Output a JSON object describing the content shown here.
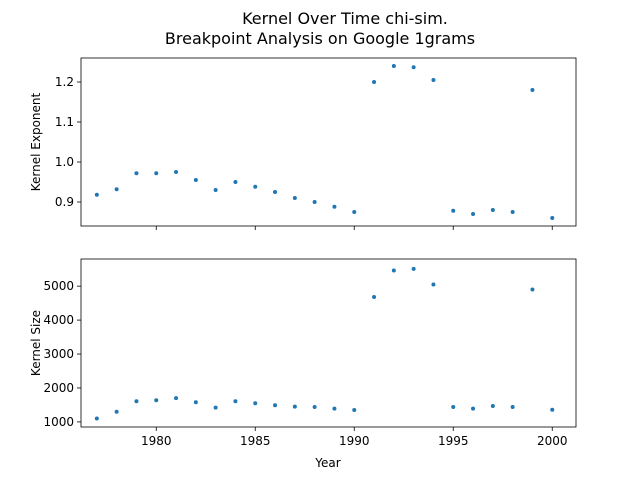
{
  "chart_data": {
    "title_line1": "Kernel Over Time chi-sim.",
    "title_line2": "Breakpoint Analysis on Google 1grams",
    "xlabel": "Year",
    "xticks": [
      1980,
      1985,
      1990,
      1995,
      2000
    ],
    "xlim": [
      1976.2,
      2001.2
    ],
    "marker_color": "#1f77b4",
    "panels": [
      {
        "type": "scatter",
        "ylabel": "Kernel Exponent",
        "ylim": [
          0.84,
          1.26
        ],
        "yticks": [
          0.9,
          1.0,
          1.1,
          1.2
        ],
        "ytick_labels": [
          "0.9",
          "1.0",
          "1.1",
          "1.2"
        ],
        "x": [
          1977,
          1978,
          1979,
          1980,
          1981,
          1982,
          1983,
          1984,
          1985,
          1986,
          1987,
          1988,
          1989,
          1990,
          1991,
          1992,
          1993,
          1994,
          1995,
          1996,
          1997,
          1998,
          1999,
          2000
        ],
        "y": [
          0.918,
          0.932,
          0.972,
          0.972,
          0.975,
          0.955,
          0.93,
          0.95,
          0.938,
          0.925,
          0.91,
          0.9,
          0.888,
          0.875,
          1.2,
          1.24,
          1.237,
          1.205,
          0.878,
          0.87,
          0.88,
          0.875,
          1.18,
          0.86
        ]
      },
      {
        "type": "scatter",
        "ylabel": "Kernel Size",
        "ylim": [
          850,
          5800
        ],
        "yticks": [
          1000,
          2000,
          3000,
          4000,
          5000
        ],
        "ytick_labels": [
          "1000",
          "2000",
          "3000",
          "4000",
          "5000"
        ],
        "x": [
          1977,
          1978,
          1979,
          1980,
          1981,
          1982,
          1983,
          1984,
          1985,
          1986,
          1987,
          1988,
          1989,
          1990,
          1991,
          1992,
          1993,
          1994,
          1995,
          1996,
          1997,
          1998,
          1999,
          2000
        ],
        "y": [
          1100,
          1300,
          1610,
          1640,
          1700,
          1580,
          1420,
          1610,
          1550,
          1490,
          1450,
          1440,
          1390,
          1350,
          4680,
          5460,
          5510,
          5050,
          1440,
          1390,
          1470,
          1440,
          4900,
          1360
        ]
      }
    ]
  }
}
